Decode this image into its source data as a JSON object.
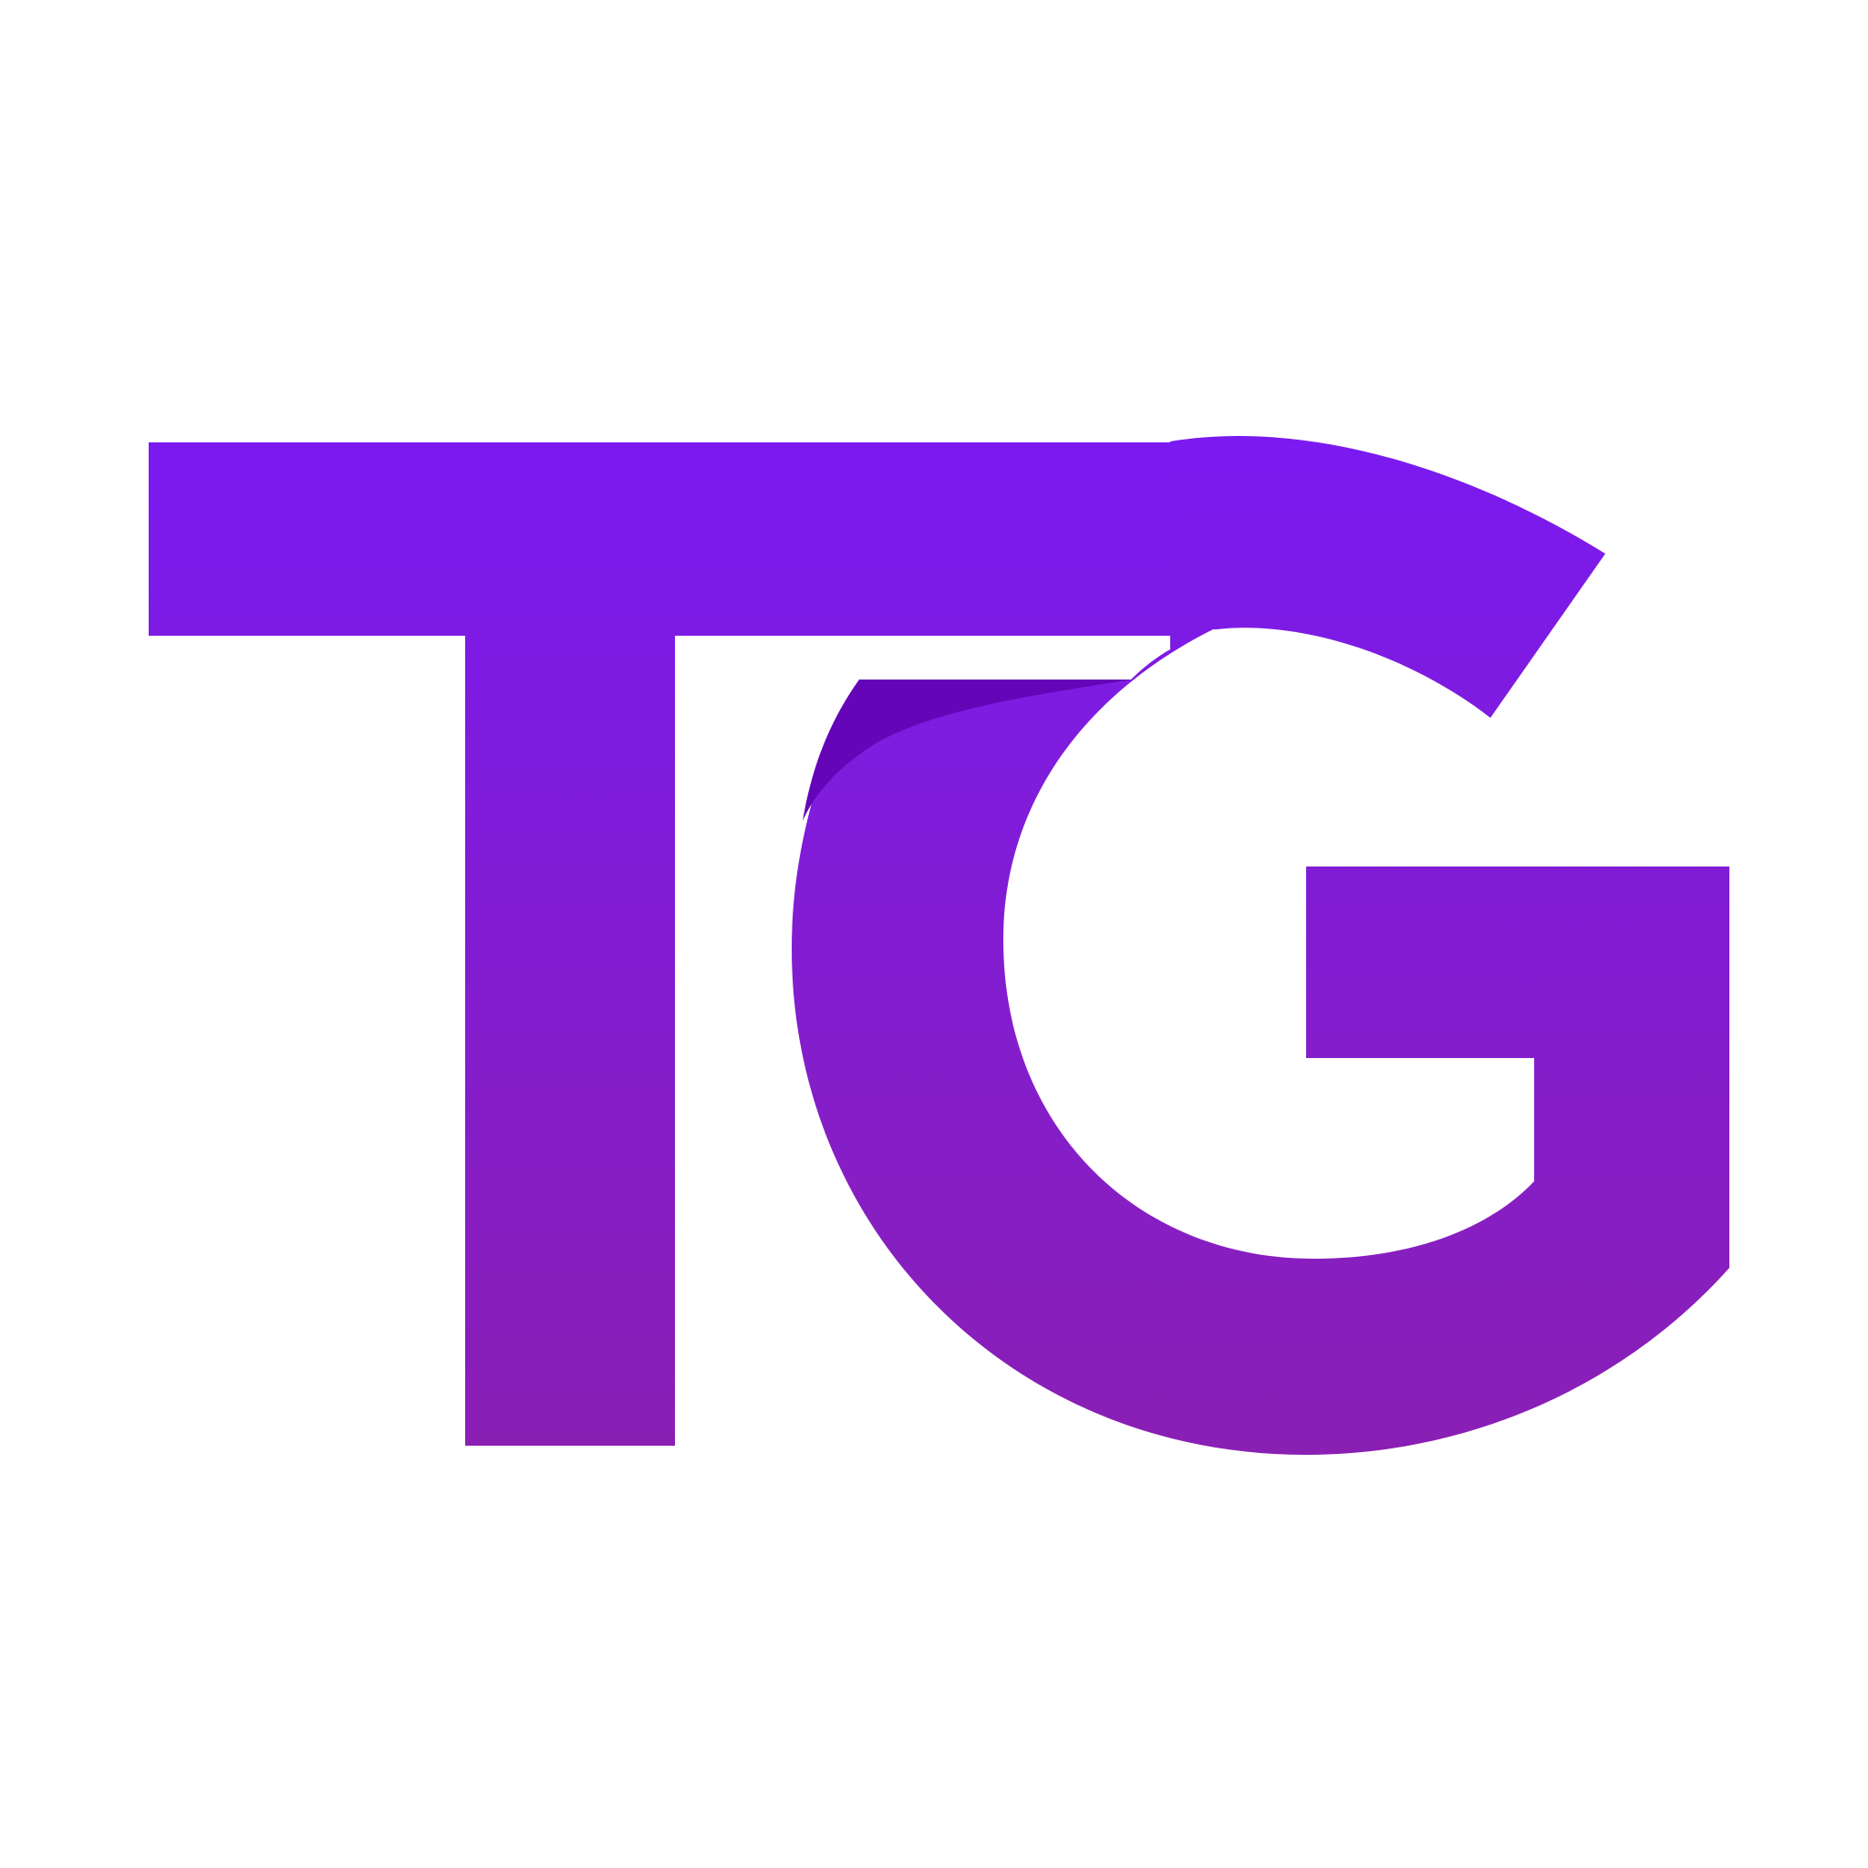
{
  "logo": {
    "monogram": "TG",
    "letters": [
      "T",
      "G"
    ],
    "colors": {
      "background": "#ffffff",
      "gradient_top": "#7a1af0",
      "gradient_bottom": "#8a1fb4",
      "fold_shade": "#6505b8"
    }
  }
}
